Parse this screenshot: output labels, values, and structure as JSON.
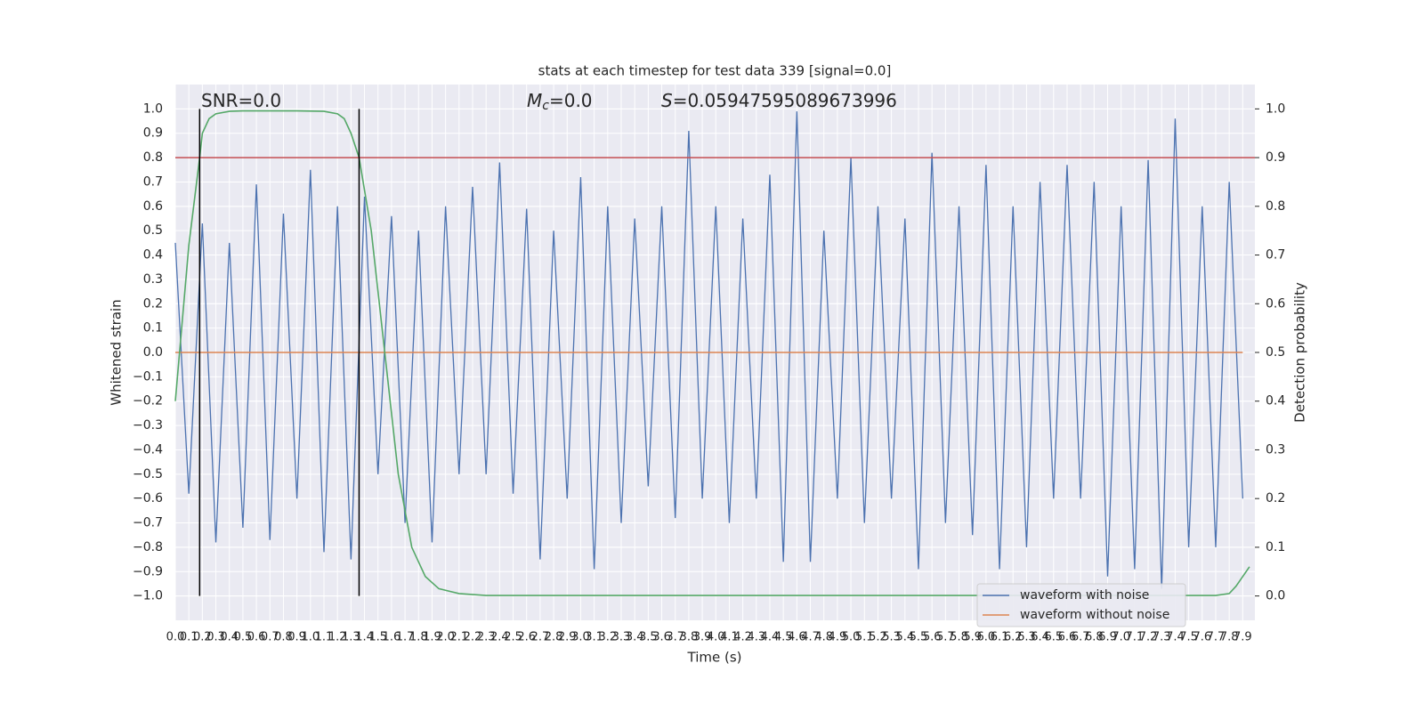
{
  "chart_data": {
    "type": "line",
    "title": "stats at each timestep for test data 339 [signal=0.0]",
    "xlabel": "Time (s)",
    "ylabel": "Whitened strain",
    "y2label": "Detection probability",
    "annotations": [
      {
        "text": "SNR=0.0"
      },
      {
        "symbol": "M",
        "sub": "c",
        "text": "=0.0"
      },
      {
        "symbol": "S",
        "text": "=0.05947595089673996"
      }
    ],
    "x": [
      0,
      0.1,
      0.2,
      0.3,
      0.4,
      0.5,
      0.6,
      0.7,
      0.8,
      0.9,
      1,
      1.1,
      1.2,
      1.3,
      1.4,
      1.5,
      1.6,
      1.7,
      1.8,
      1.9,
      2,
      2.1,
      2.2,
      2.3,
      2.4,
      2.5,
      2.6,
      2.7,
      2.8,
      2.9,
      3,
      3.1,
      3.2,
      3.3,
      3.4,
      3.5,
      3.6,
      3.7,
      3.8,
      3.9,
      4,
      4.1,
      4.2,
      4.3,
      4.4,
      4.5,
      4.6,
      4.7,
      4.8,
      4.9,
      5,
      5.1,
      5.2,
      5.3,
      5.4,
      5.5,
      5.6,
      5.7,
      5.8,
      5.9,
      6,
      6.1,
      6.2,
      6.3,
      6.4,
      6.5,
      6.6,
      6.7,
      6.8,
      6.9,
      7,
      7.1,
      7.2,
      7.3,
      7.4,
      7.5,
      7.6,
      7.7,
      7.8,
      7.9
    ],
    "series": [
      {
        "name": "waveform with noise",
        "color": "#4c72b0",
        "values": [
          0.45,
          -0.58,
          0.53,
          -0.78,
          0.45,
          -0.72,
          0.69,
          -0.77,
          0.57,
          -0.6,
          0.75,
          -0.82,
          0.6,
          -0.85,
          0.64,
          -0.5,
          0.56,
          -0.7,
          0.5,
          -0.78,
          0.6,
          -0.5,
          0.68,
          -0.5,
          0.78,
          -0.58,
          0.59,
          -0.85,
          0.5,
          -0.6,
          0.72,
          -0.89,
          0.6,
          -0.7,
          0.55,
          -0.55,
          0.6,
          -0.68,
          0.91,
          -0.6,
          0.6,
          -0.7,
          0.55,
          -0.6,
          0.73,
          -0.86,
          0.99,
          -0.86,
          0.5,
          -0.6,
          0.8,
          -0.7,
          0.6,
          -0.6,
          0.55,
          -0.89,
          0.82,
          -0.7,
          0.6,
          -0.75,
          0.77,
          -0.89,
          0.6,
          -0.8,
          0.7,
          -0.6,
          0.77,
          -0.6,
          0.7,
          -0.92,
          0.6,
          -0.89,
          0.79,
          -0.97,
          0.96,
          -0.8,
          0.6,
          -0.8,
          0.7,
          -0.6
        ]
      },
      {
        "name": "waveform without noise",
        "color": "#dd8452",
        "values": [
          0,
          0,
          0,
          0,
          0,
          0,
          0,
          0,
          0,
          0,
          0,
          0,
          0,
          0,
          0,
          0,
          0,
          0,
          0,
          0,
          0,
          0,
          0,
          0,
          0,
          0,
          0,
          0,
          0,
          0,
          0,
          0,
          0,
          0,
          0,
          0,
          0,
          0,
          0,
          0,
          0,
          0,
          0,
          0,
          0,
          0,
          0,
          0,
          0,
          0,
          0,
          0,
          0,
          0,
          0,
          0,
          0,
          0,
          0,
          0,
          0,
          0,
          0,
          0,
          0,
          0,
          0,
          0,
          0,
          0,
          0,
          0,
          0,
          0,
          0,
          0,
          0,
          0,
          0,
          0
        ]
      },
      {
        "color": "#55a868",
        "axis": "y2",
        "x": [
          0,
          0.1,
          0.18,
          0.2,
          0.25,
          0.3,
          0.4,
          0.5,
          0.7,
          0.9,
          1.1,
          1.2,
          1.25,
          1.3,
          1.36,
          1.45,
          1.55,
          1.65,
          1.75,
          1.85,
          1.95,
          2.1,
          2.3,
          7.7,
          7.8,
          7.85,
          7.95
        ],
        "values": [
          0.4,
          0.72,
          0.9,
          0.95,
          0.98,
          0.99,
          0.995,
          0.996,
          0.996,
          0.996,
          0.995,
          0.99,
          0.98,
          0.95,
          0.9,
          0.75,
          0.5,
          0.25,
          0.1,
          0.04,
          0.015,
          0.005,
          0.001,
          0.001,
          0.005,
          0.02,
          0.06
        ]
      }
    ],
    "threshold": {
      "value": 0.8,
      "color": "#c44e52"
    },
    "vlines": [
      0.18,
      1.36
    ],
    "vline_span": [
      -1,
      1
    ],
    "xlim": [
      0,
      7.99
    ],
    "ylim": [
      -1.1,
      1.1
    ],
    "y2lim": [
      -0.05,
      1.05
    ],
    "xticks": [
      {
        "value": 0,
        "label": "0.0"
      },
      {
        "value": 0.1,
        "label": "0.1"
      },
      {
        "value": 0.2,
        "label": "0.2"
      },
      {
        "value": 0.3,
        "label": "0.3"
      },
      {
        "value": 0.4,
        "label": "0.4"
      },
      {
        "value": 0.5,
        "label": "0.5"
      },
      {
        "value": 0.6,
        "label": "0.6"
      },
      {
        "value": 0.7,
        "label": "0.7"
      },
      {
        "value": 0.8,
        "label": "0.8"
      },
      {
        "value": 0.9,
        "label": "0.9"
      },
      {
        "value": 1,
        "label": "1.0"
      },
      {
        "value": 1.1,
        "label": "1.1"
      },
      {
        "value": 1.2,
        "label": "1.2"
      },
      {
        "value": 1.3,
        "label": "1.3"
      },
      {
        "value": 1.4,
        "label": "1.4"
      },
      {
        "value": 1.5,
        "label": "1.5"
      },
      {
        "value": 1.6,
        "label": "1.6"
      },
      {
        "value": 1.7,
        "label": "1.7"
      },
      {
        "value": 1.8,
        "label": "1.8"
      },
      {
        "value": 1.9,
        "label": "1.9"
      },
      {
        "value": 2,
        "label": "2.0"
      },
      {
        "value": 2.1,
        "label": "2.1"
      },
      {
        "value": 2.2,
        "label": "2.2"
      },
      {
        "value": 2.3,
        "label": "2.3"
      },
      {
        "value": 2.4,
        "label": "2.4"
      },
      {
        "value": 2.5,
        "label": "2.5"
      },
      {
        "value": 2.6,
        "label": "2.6"
      },
      {
        "value": 2.7,
        "label": "2.7"
      },
      {
        "value": 2.8,
        "label": "2.8"
      },
      {
        "value": 2.9,
        "label": "2.9"
      },
      {
        "value": 3,
        "label": "3.0"
      },
      {
        "value": 3.1,
        "label": "3.1"
      },
      {
        "value": 3.2,
        "label": "3.2"
      },
      {
        "value": 3.3,
        "label": "3.3"
      },
      {
        "value": 3.4,
        "label": "3.4"
      },
      {
        "value": 3.5,
        "label": "3.5"
      },
      {
        "value": 3.6,
        "label": "3.6"
      },
      {
        "value": 3.7,
        "label": "3.7"
      },
      {
        "value": 3.8,
        "label": "3.8"
      },
      {
        "value": 3.9,
        "label": "3.9"
      },
      {
        "value": 4,
        "label": "4.0"
      },
      {
        "value": 4.1,
        "label": "4.1"
      },
      {
        "value": 4.2,
        "label": "4.2"
      },
      {
        "value": 4.3,
        "label": "4.3"
      },
      {
        "value": 4.4,
        "label": "4.4"
      },
      {
        "value": 4.5,
        "label": "4.5"
      },
      {
        "value": 4.6,
        "label": "4.6"
      },
      {
        "value": 4.7,
        "label": "4.7"
      },
      {
        "value": 4.8,
        "label": "4.8"
      },
      {
        "value": 4.9,
        "label": "4.9"
      },
      {
        "value": 5,
        "label": "5.0"
      },
      {
        "value": 5.1,
        "label": "5.1"
      },
      {
        "value": 5.2,
        "label": "5.2"
      },
      {
        "value": 5.3,
        "label": "5.3"
      },
      {
        "value": 5.4,
        "label": "5.4"
      },
      {
        "value": 5.5,
        "label": "5.5"
      },
      {
        "value": 5.6,
        "label": "5.6"
      },
      {
        "value": 5.7,
        "label": "5.7"
      },
      {
        "value": 5.8,
        "label": "5.8"
      },
      {
        "value": 5.9,
        "label": "5.9"
      },
      {
        "value": 6,
        "label": "6.0"
      },
      {
        "value": 6.1,
        "label": "6.1"
      },
      {
        "value": 6.2,
        "label": "6.2"
      },
      {
        "value": 6.3,
        "label": "6.3"
      },
      {
        "value": 6.4,
        "label": "6.4"
      },
      {
        "value": 6.5,
        "label": "6.5"
      },
      {
        "value": 6.6,
        "label": "6.6"
      },
      {
        "value": 6.7,
        "label": "6.7"
      },
      {
        "value": 6.8,
        "label": "6.8"
      },
      {
        "value": 6.9,
        "label": "6.9"
      },
      {
        "value": 7,
        "label": "7.0"
      },
      {
        "value": 7.1,
        "label": "7.1"
      },
      {
        "value": 7.2,
        "label": "7.2"
      },
      {
        "value": 7.3,
        "label": "7.3"
      },
      {
        "value": 7.4,
        "label": "7.4"
      },
      {
        "value": 7.5,
        "label": "7.5"
      },
      {
        "value": 7.6,
        "label": "7.6"
      },
      {
        "value": 7.7,
        "label": "7.7"
      },
      {
        "value": 7.8,
        "label": "7.8"
      },
      {
        "value": 7.9,
        "label": "7.9"
      }
    ],
    "yticks": [
      {
        "value": -1,
        "label": "−1.0"
      },
      {
        "value": -0.9,
        "label": "−0.9"
      },
      {
        "value": -0.8,
        "label": "−0.8"
      },
      {
        "value": -0.7,
        "label": "−0.7"
      },
      {
        "value": -0.6,
        "label": "−0.6"
      },
      {
        "value": -0.5,
        "label": "−0.5"
      },
      {
        "value": -0.4,
        "label": "−0.4"
      },
      {
        "value": -0.3,
        "label": "−0.3"
      },
      {
        "value": -0.2,
        "label": "−0.2"
      },
      {
        "value": -0.1,
        "label": "−0.1"
      },
      {
        "value": 0,
        "label": "0.0"
      },
      {
        "value": 0.1,
        "label": "0.1"
      },
      {
        "value": 0.2,
        "label": "0.2"
      },
      {
        "value": 0.3,
        "label": "0.3"
      },
      {
        "value": 0.4,
        "label": "0.4"
      },
      {
        "value": 0.5,
        "label": "0.5"
      },
      {
        "value": 0.6,
        "label": "0.6"
      },
      {
        "value": 0.7,
        "label": "0.7"
      },
      {
        "value": 0.8,
        "label": "0.8"
      },
      {
        "value": 0.9,
        "label": "0.9"
      },
      {
        "value": 1,
        "label": "1.0"
      }
    ],
    "y2ticks": [
      {
        "value": 0,
        "label": "0.0"
      },
      {
        "value": 0.1,
        "label": "0.1"
      },
      {
        "value": 0.2,
        "label": "0.2"
      },
      {
        "value": 0.3,
        "label": "0.3"
      },
      {
        "value": 0.4,
        "label": "0.4"
      },
      {
        "value": 0.5,
        "label": "0.5"
      },
      {
        "value": 0.6,
        "label": "0.6"
      },
      {
        "value": 0.7,
        "label": "0.7"
      },
      {
        "value": 0.8,
        "label": "0.8"
      },
      {
        "value": 0.9,
        "label": "0.9"
      },
      {
        "value": 1,
        "label": "1.0"
      }
    ],
    "grid": true,
    "legend": "lower right"
  }
}
